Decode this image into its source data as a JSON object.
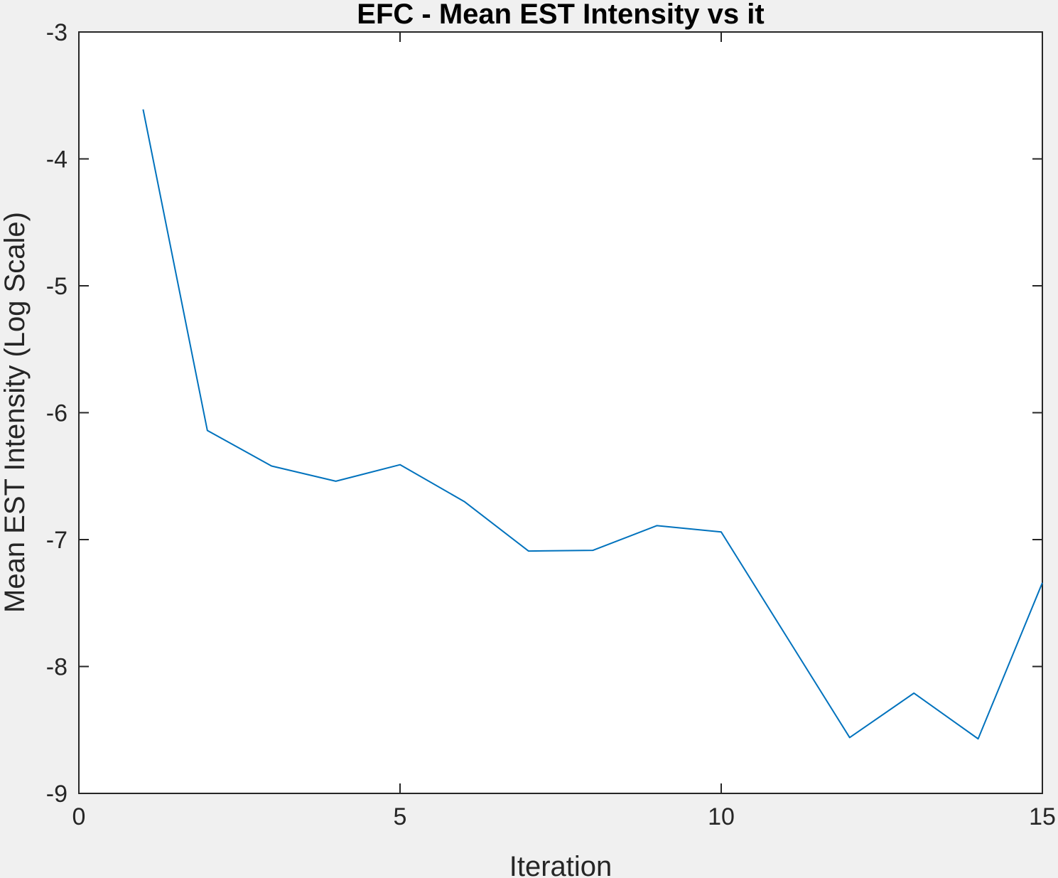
{
  "chart_data": {
    "type": "line",
    "title": "EFC - Mean EST Intensity vs it",
    "xlabel": "Iteration",
    "ylabel": "Mean EST Intensity (Log Scale)",
    "xlim": [
      0,
      15
    ],
    "ylim": [
      -9,
      -3
    ],
    "xticks": [
      0,
      5,
      10,
      15
    ],
    "yticks": [
      -3,
      -4,
      -5,
      -6,
      -7,
      -8,
      -9
    ],
    "grid": false,
    "series": [
      {
        "color": "#0072bd",
        "x": [
          1,
          2,
          3,
          4,
          5,
          6,
          7,
          8,
          9,
          10,
          11,
          12,
          13,
          14,
          15
        ],
        "y": [
          -3.61,
          -6.14,
          -6.42,
          -6.54,
          -6.41,
          -6.7,
          -7.09,
          -7.085,
          -6.89,
          -6.94,
          -7.75,
          -8.56,
          -8.21,
          -8.57,
          -7.34
        ]
      }
    ],
    "colors": {
      "background": "#f0f0f0",
      "axes_background": "#ffffff",
      "axis": "#262626",
      "title": "#000000"
    }
  }
}
